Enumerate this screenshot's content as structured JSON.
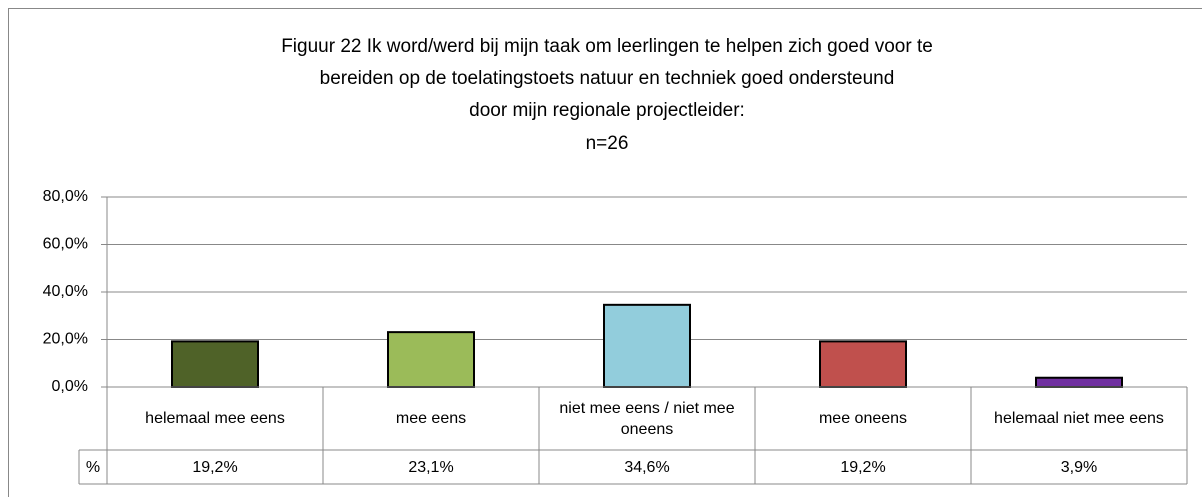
{
  "chart_data": {
    "type": "bar",
    "title": [
      "Figuur 22 Ik word/werd bij mijn taak om leerlingen te helpen zich goed voor te",
      "bereiden op de toelatingstoets natuur en techniek goed ondersteund",
      "door mijn regionale projectleider:"
    ],
    "subtitle": "n=26",
    "categories": [
      "helemaal mee eens",
      "mee eens",
      "niet mee eens / niet mee oneens",
      "mee oneens",
      "helemaal niet mee eens"
    ],
    "series": [
      {
        "name": "%",
        "colors": [
          "#4f6228",
          "#9bbb59",
          "#92cddc",
          "#c0504d",
          "#7030a0"
        ],
        "values": [
          19.2,
          23.1,
          34.6,
          19.2,
          3.9
        ],
        "value_labels": [
          "19,2%",
          "23,1%",
          "34,6%",
          "19,2%",
          "3,9%"
        ]
      }
    ],
    "ylim": [
      0,
      80
    ],
    "yticks": [
      {
        "value": 0,
        "label": "0,0%"
      },
      {
        "value": 20,
        "label": "20,0%"
      },
      {
        "value": 40,
        "label": "40,0%"
      },
      {
        "value": 60,
        "label": "60,0%"
      },
      {
        "value": 80,
        "label": "80,0%"
      }
    ],
    "grid": true
  }
}
